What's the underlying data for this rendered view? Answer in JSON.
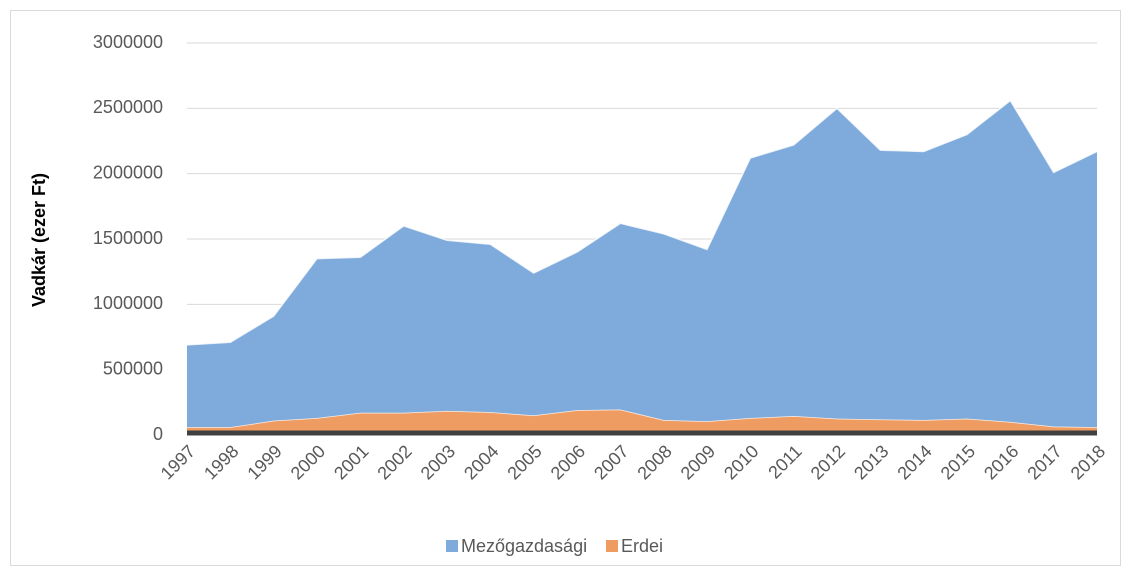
{
  "chart_data": {
    "type": "stacked_area",
    "y_label": "Vadkár (ezer Ft)",
    "categories": [
      "1997",
      "1998",
      "1999",
      "2000",
      "2001",
      "2002",
      "2003",
      "2004",
      "2005",
      "2006",
      "2007",
      "2008",
      "2009",
      "2010",
      "2011",
      "2012",
      "2013",
      "2014",
      "2015",
      "2016",
      "2017",
      "2018"
    ],
    "series": [
      {
        "name": "Erdei",
        "color": "#ee9c62",
        "values": [
          60000,
          60000,
          110000,
          130000,
          170000,
          170000,
          185000,
          175000,
          150000,
          190000,
          195000,
          115000,
          105000,
          130000,
          145000,
          125000,
          120000,
          115000,
          125000,
          100000,
          65000,
          60000
        ]
      },
      {
        "name": "Mezőgazdasági",
        "color": "#7eabdc",
        "values": [
          630000,
          650000,
          800000,
          1220000,
          1190000,
          1430000,
          1305000,
          1285000,
          1090000,
          1210000,
          1425000,
          1425000,
          1315000,
          1990000,
          2075000,
          2375000,
          2060000,
          2055000,
          2175000,
          2460000,
          1945000,
          2110000
        ]
      }
    ],
    "legend_order": [
      1,
      0
    ],
    "ylim": [
      0,
      3000000
    ],
    "yticks": [
      0,
      500000,
      1000000,
      1500000,
      2000000,
      2500000,
      3000000
    ],
    "grid": true
  }
}
